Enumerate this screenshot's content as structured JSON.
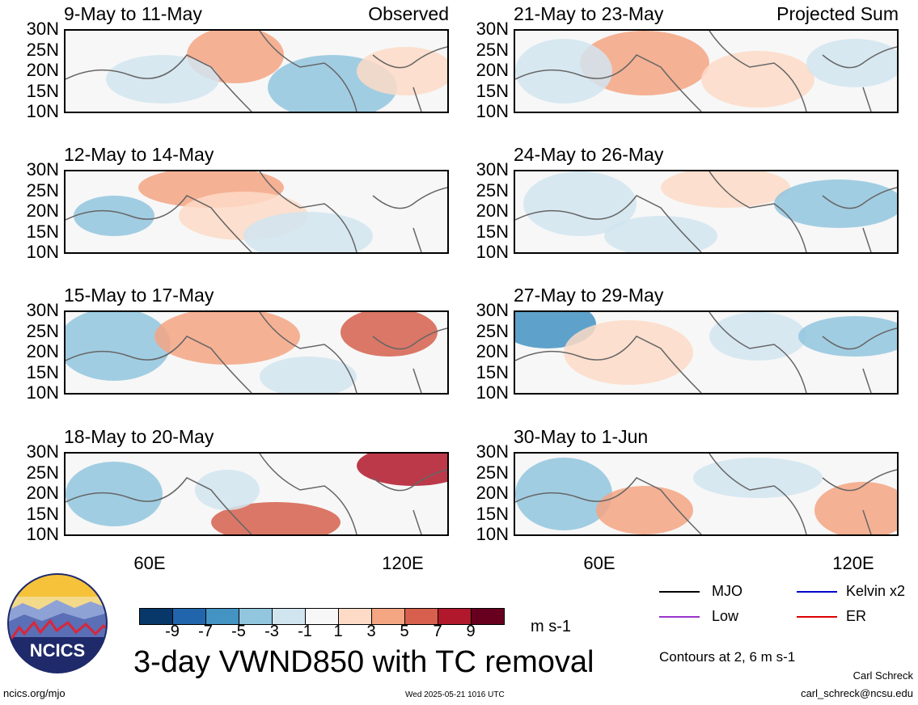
{
  "panels": [
    {
      "title": "9-May to 11-May",
      "tag": "Observed"
    },
    {
      "title": "12-May to 14-May",
      "tag": ""
    },
    {
      "title": "15-May to 17-May",
      "tag": ""
    },
    {
      "title": "18-May to 20-May",
      "tag": ""
    },
    {
      "title": "21-May to 23-May",
      "tag": "Projected Sum"
    },
    {
      "title": "24-May to 26-May",
      "tag": ""
    },
    {
      "title": "27-May to 29-May",
      "tag": ""
    },
    {
      "title": "30-May to 1-Jun",
      "tag": ""
    }
  ],
  "lat_labels": [
    "30N",
    "25N",
    "20N",
    "15N",
    "10N"
  ],
  "lon_labels": [
    "60E",
    "120E"
  ],
  "colorbar": {
    "colors": [
      "#083769",
      "#2166ac",
      "#4393c3",
      "#92c5de",
      "#d1e5f0",
      "#f7f7f7",
      "#fddbc7",
      "#f4a582",
      "#d6604d",
      "#b2182b",
      "#67001f"
    ],
    "ticks": [
      "-9",
      "-7",
      "-5",
      "-3",
      "-1",
      "1",
      "3",
      "5",
      "7",
      "9"
    ],
    "unit": "m s-1"
  },
  "legend": [
    {
      "label": "MJO",
      "color": "#000000"
    },
    {
      "label": "Kelvin x2",
      "color": "#0000cc"
    },
    {
      "label": "Low",
      "color": "#9933cc"
    },
    {
      "label": "ER",
      "color": "#dd0000"
    }
  ],
  "contour_note": "Contours at 2, 6 m s-1",
  "main_title": "3-day VWND850 with TC removal",
  "logo_text": "NCICS",
  "author": "Carl Schreck",
  "email": "carl_schreck@ncsu.edu",
  "website": "ncics.org/mjo",
  "timestamp": "Wed 2025-05-21 1016 UTC"
}
